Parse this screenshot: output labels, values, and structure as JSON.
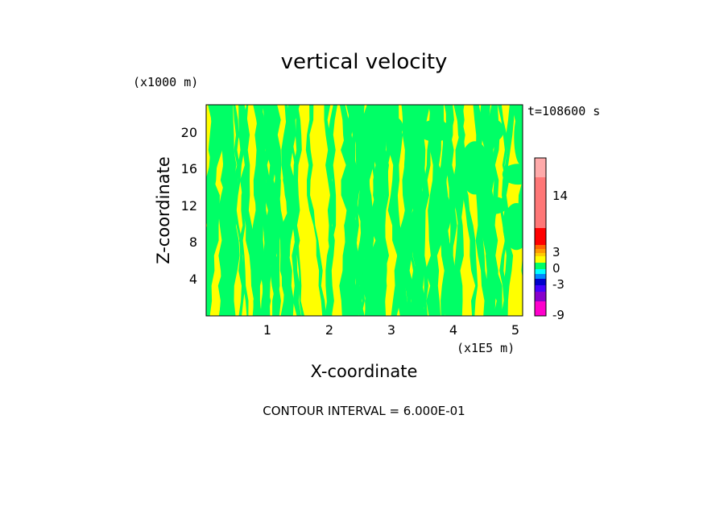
{
  "chart_data": {
    "type": "heatmap",
    "title": "vertical velocity",
    "xlabel": "X-coordinate",
    "ylabel": "Z-coordinate",
    "x_unit": "(x1E5 m)",
    "y_unit": "(x1000 m)",
    "x_ticks": [
      "1",
      "2",
      "3",
      "4",
      "5"
    ],
    "y_ticks": [
      "4",
      "8",
      "12",
      "16",
      "20"
    ],
    "xlim": [
      0,
      5.1
    ],
    "ylim": [
      0,
      22.8
    ],
    "time_label": "t=108600 s",
    "footer": "CONTOUR INTERVAL = 6.000E-01",
    "field_colors": {
      "positive": "#ffff00",
      "negative": "#00ff66"
    },
    "colorbar": {
      "tick_labels": [
        "14",
        "3",
        "0",
        "-3",
        "-9"
      ],
      "tick_values": [
        14,
        3,
        0,
        -3,
        -9
      ],
      "levels": [
        {
          "color": "#ff00cc"
        },
        {
          "color": "#8800cc"
        },
        {
          "color": "#4400ff"
        },
        {
          "color": "#0000cc"
        },
        {
          "color": "#0088ff"
        },
        {
          "color": "#00ffff"
        },
        {
          "color": "#00ff66"
        },
        {
          "color": "#ffff00"
        },
        {
          "color": "#ffcc00"
        },
        {
          "color": "#ff9900"
        },
        {
          "color": "#ff6600"
        },
        {
          "color": "#ff0000"
        },
        {
          "color": "#ff7777"
        },
        {
          "color": "#ffaaaa"
        }
      ]
    }
  }
}
